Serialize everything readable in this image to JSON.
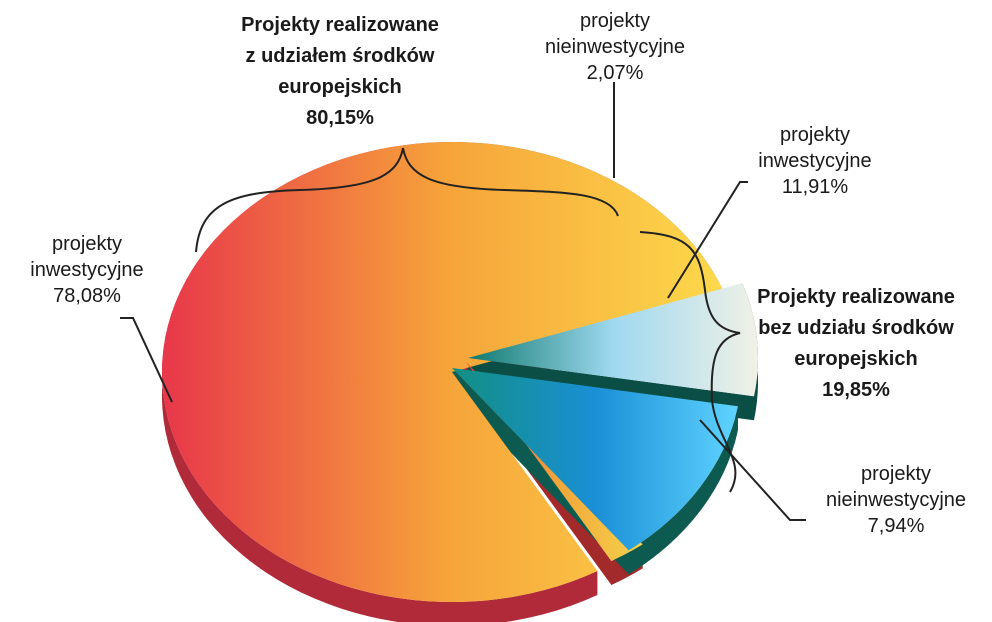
{
  "chart_data": {
    "type": "pie",
    "style": "3d-exploded",
    "slices": [
      {
        "label": [
          "projekty",
          "inwestycyjne",
          "78,08%"
        ],
        "value": 78.08,
        "colors": [
          "#e8374a",
          "#f6a33a",
          "#fdd94b"
        ],
        "side": "#b02a3a"
      },
      {
        "label": [
          "projekty",
          "nieinwestycyjne",
          "2,07%"
        ],
        "value": 2.07,
        "colors": [
          "#e33a3a",
          "#f2a43a",
          "#f5d34a"
        ],
        "side": "#a32a2a"
      },
      {
        "label": [
          "projekty",
          "inwestycyjne",
          "11,91%"
        ],
        "value": 11.91,
        "colors": [
          "#128f82",
          "#1a8fd6",
          "#5fd3ff"
        ],
        "side": "#0d5a50"
      },
      {
        "label": [
          "projekty",
          "nieinwestycyjne",
          "7,94%"
        ],
        "value": 7.94,
        "colors": [
          "#0f7a6e",
          "#9fd8f0",
          "#f1f1e6"
        ],
        "side": "#0b4e46"
      }
    ],
    "groups": [
      {
        "label": [
          "Projekty realizowane",
          "z udziałem środków",
          "europejskich",
          "80,15%"
        ],
        "value": 80.15
      },
      {
        "label": [
          "Projekty  realizowane",
          "bez udziału środków",
          "europejskich",
          "19,85%"
        ],
        "value": 19.85
      }
    ]
  }
}
